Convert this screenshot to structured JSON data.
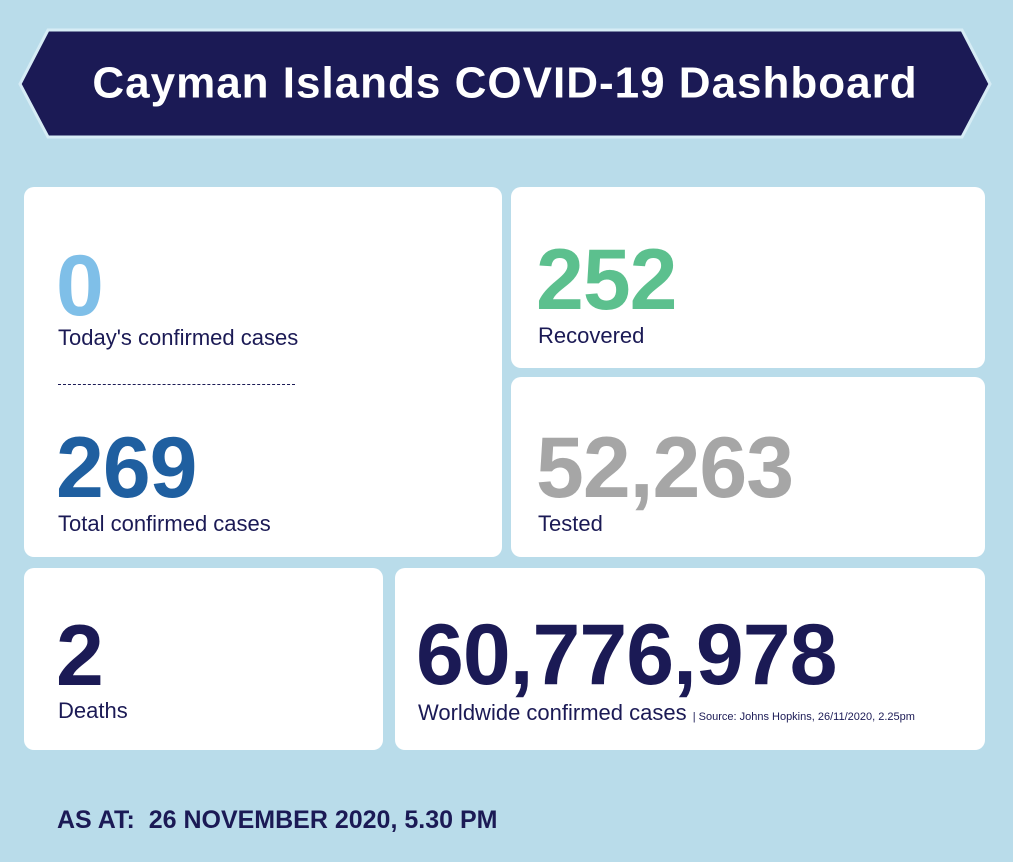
{
  "header": {
    "title": "Cayman Islands COVID-19 Dashboard"
  },
  "cards": [
    {
      "value": "0",
      "label": "Today's confirmed cases"
    },
    {
      "value": "269",
      "label": "Total confirmed cases"
    },
    {
      "value": "252",
      "label": "Recovered"
    },
    {
      "value": "52,263",
      "label": "Tested"
    },
    {
      "value": "2",
      "label": "Deaths"
    },
    {
      "value": "60,776,978",
      "label": "Worldwide confirmed cases",
      "source": "| Source: Johns Hopkins, 26/11/2020, 2.25pm"
    }
  ],
  "footer": {
    "label": "AS AT:",
    "date": "26 NOVEMBER 2020, 5.30 PM"
  }
}
